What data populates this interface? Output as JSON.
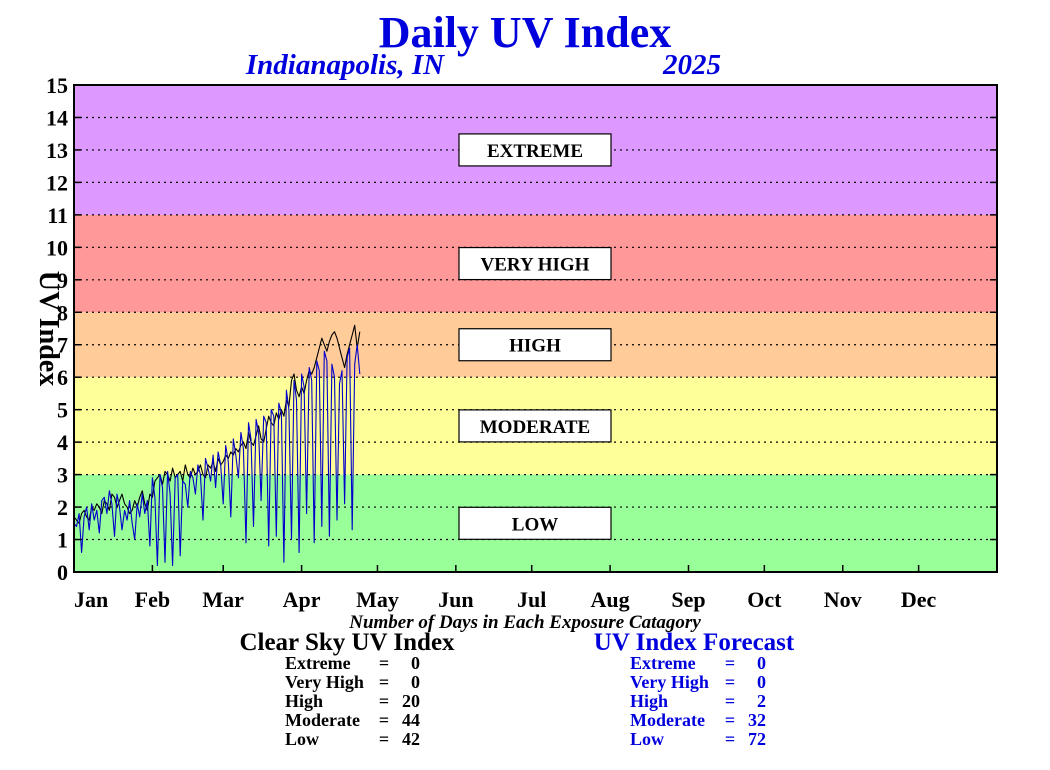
{
  "chart_data": {
    "type": "line",
    "title": "Daily UV Index",
    "subtitle_location": "Indianapolis, IN",
    "subtitle_year": "2025",
    "ylabel": "UV Index",
    "ylim": [
      0,
      15
    ],
    "yticks": [
      "0",
      "1",
      "2",
      "3",
      "4",
      "5",
      "6",
      "7",
      "8",
      "9",
      "10",
      "11",
      "12",
      "13",
      "14",
      "15"
    ],
    "xlim": [
      1,
      366
    ],
    "months": [
      {
        "label": "Jan",
        "day": 1
      },
      {
        "label": "Feb",
        "day": 32
      },
      {
        "label": "Mar",
        "day": 60
      },
      {
        "label": "Apr",
        "day": 91
      },
      {
        "label": "May",
        "day": 121
      },
      {
        "label": "Jun",
        "day": 152
      },
      {
        "label": "Jul",
        "day": 182
      },
      {
        "label": "Aug",
        "day": 213
      },
      {
        "label": "Sep",
        "day": 244
      },
      {
        "label": "Oct",
        "day": 274
      },
      {
        "label": "Nov",
        "day": 305
      },
      {
        "label": "Dec",
        "day": 335
      }
    ],
    "grid": true,
    "bands": [
      {
        "label": "LOW",
        "from": 0,
        "to": 3,
        "color": "#99ff99",
        "label_y": 1.5
      },
      {
        "label": "MODERATE",
        "from": 3,
        "to": 6,
        "color": "#ffff99",
        "label_y": 4.5
      },
      {
        "label": "HIGH",
        "from": 6,
        "to": 8,
        "color": "#ffcc99",
        "label_y": 7
      },
      {
        "label": "VERY HIGH",
        "from": 8,
        "to": 11,
        "color": "#ff9999",
        "label_y": 9.5
      },
      {
        "label": "EXTREME",
        "from": 11,
        "to": 15,
        "color": "#dd99ff",
        "label_y": 13
      }
    ],
    "series": [
      {
        "color": "#000000",
        "x_start_day": 1,
        "values": [
          1.7,
          1.6,
          1.5,
          1.8,
          1.9,
          1.7,
          1.6,
          2.0,
          1.9,
          2.1,
          2.0,
          1.8,
          2.2,
          2.1,
          1.9,
          2.4,
          2.3,
          2.0,
          2.2,
          2.4,
          2.1,
          2.0,
          1.8,
          1.9,
          2.2,
          2.0,
          2.3,
          2.5,
          2.1,
          1.9,
          2.4,
          2.3,
          2.8,
          2.9,
          3.0,
          2.7,
          3.1,
          3.0,
          2.8,
          3.2,
          2.9,
          3.0,
          3.1,
          2.8,
          3.3,
          3.0,
          2.9,
          3.2,
          3.0,
          3.1,
          3.3,
          3.0,
          2.9,
          3.3,
          3.2,
          3.4,
          3.1,
          3.5,
          3.3,
          3.4,
          3.6,
          3.5,
          3.7,
          3.6,
          3.8,
          3.7,
          3.9,
          4.0,
          3.8,
          4.3,
          4.0,
          3.9,
          4.2,
          4.5,
          4.1,
          4.0,
          4.4,
          4.8,
          4.6,
          4.5,
          4.9,
          4.7,
          5.0,
          4.8,
          5.3,
          5.1,
          5.9,
          6.1,
          5.6,
          5.4,
          5.7,
          5.5,
          5.9,
          6.2,
          6.1,
          6.3,
          6.6,
          6.9,
          7.2,
          7.0,
          6.8,
          7.1,
          7.3,
          7.4,
          7.2,
          6.9,
          6.6,
          6.3,
          6.7,
          7.0,
          7.3,
          7.6,
          6.9,
          7.4
        ]
      },
      {
        "color": "#0000cc",
        "x_start_day": 1,
        "values": [
          1.5,
          1.4,
          1.8,
          0.6,
          1.7,
          2.0,
          1.3,
          2.1,
          1.6,
          1.9,
          1.2,
          2.2,
          2.3,
          1.8,
          2.5,
          2.1,
          1.1,
          2.4,
          2.0,
          1.3,
          1.9,
          1.6,
          2.2,
          1.5,
          1.0,
          2.1,
          1.7,
          2.4,
          1.8,
          2.2,
          0.8,
          2.9,
          2.3,
          0.2,
          3.0,
          2.6,
          0.3,
          3.1,
          2.4,
          0.2,
          2.9,
          3.0,
          0.5,
          2.8,
          2.7,
          2.0,
          3.1,
          2.9,
          2.4,
          3.3,
          3.0,
          1.6,
          3.5,
          3.2,
          2.8,
          3.6,
          2.6,
          3.7,
          3.3,
          2.1,
          3.9,
          3.4,
          1.7,
          4.1,
          3.6,
          2.9,
          4.3,
          3.8,
          0.9,
          4.6,
          4.1,
          1.4,
          4.7,
          4.3,
          2.2,
          4.8,
          4.6,
          0.8,
          5.0,
          4.8,
          1.1,
          5.2,
          4.9,
          0.3,
          5.6,
          5.0,
          1.0,
          5.9,
          5.3,
          0.6,
          6.1,
          5.7,
          1.8,
          6.3,
          5.9,
          0.9,
          6.5,
          6.2,
          1.4,
          6.8,
          6.5,
          1.1,
          6.4,
          6.0,
          1.6,
          5.8,
          6.2,
          2.1,
          6.6,
          6.9,
          1.3,
          6.4,
          7.0,
          6.1
        ]
      }
    ],
    "counts_caption": "Number of Days in Each Exposure Catagory",
    "clear_sky": {
      "heading": "Clear Sky UV Index",
      "rows": [
        {
          "label": "Extreme",
          "value": "0"
        },
        {
          "label": "Very High",
          "value": "0"
        },
        {
          "label": "High",
          "value": "20"
        },
        {
          "label": "Moderate",
          "value": "44"
        },
        {
          "label": "Low",
          "value": "42"
        }
      ]
    },
    "forecast": {
      "heading": "UV Index Forecast",
      "rows": [
        {
          "label": "Extreme",
          "value": "0"
        },
        {
          "label": "Very High",
          "value": "0"
        },
        {
          "label": "High",
          "value": "2"
        },
        {
          "label": "Moderate",
          "value": "32"
        },
        {
          "label": "Low",
          "value": "72"
        }
      ]
    },
    "colors": {
      "title": "#0000dd",
      "forecast_text": "#0000dd",
      "clear_sky_text": "#000000"
    }
  }
}
